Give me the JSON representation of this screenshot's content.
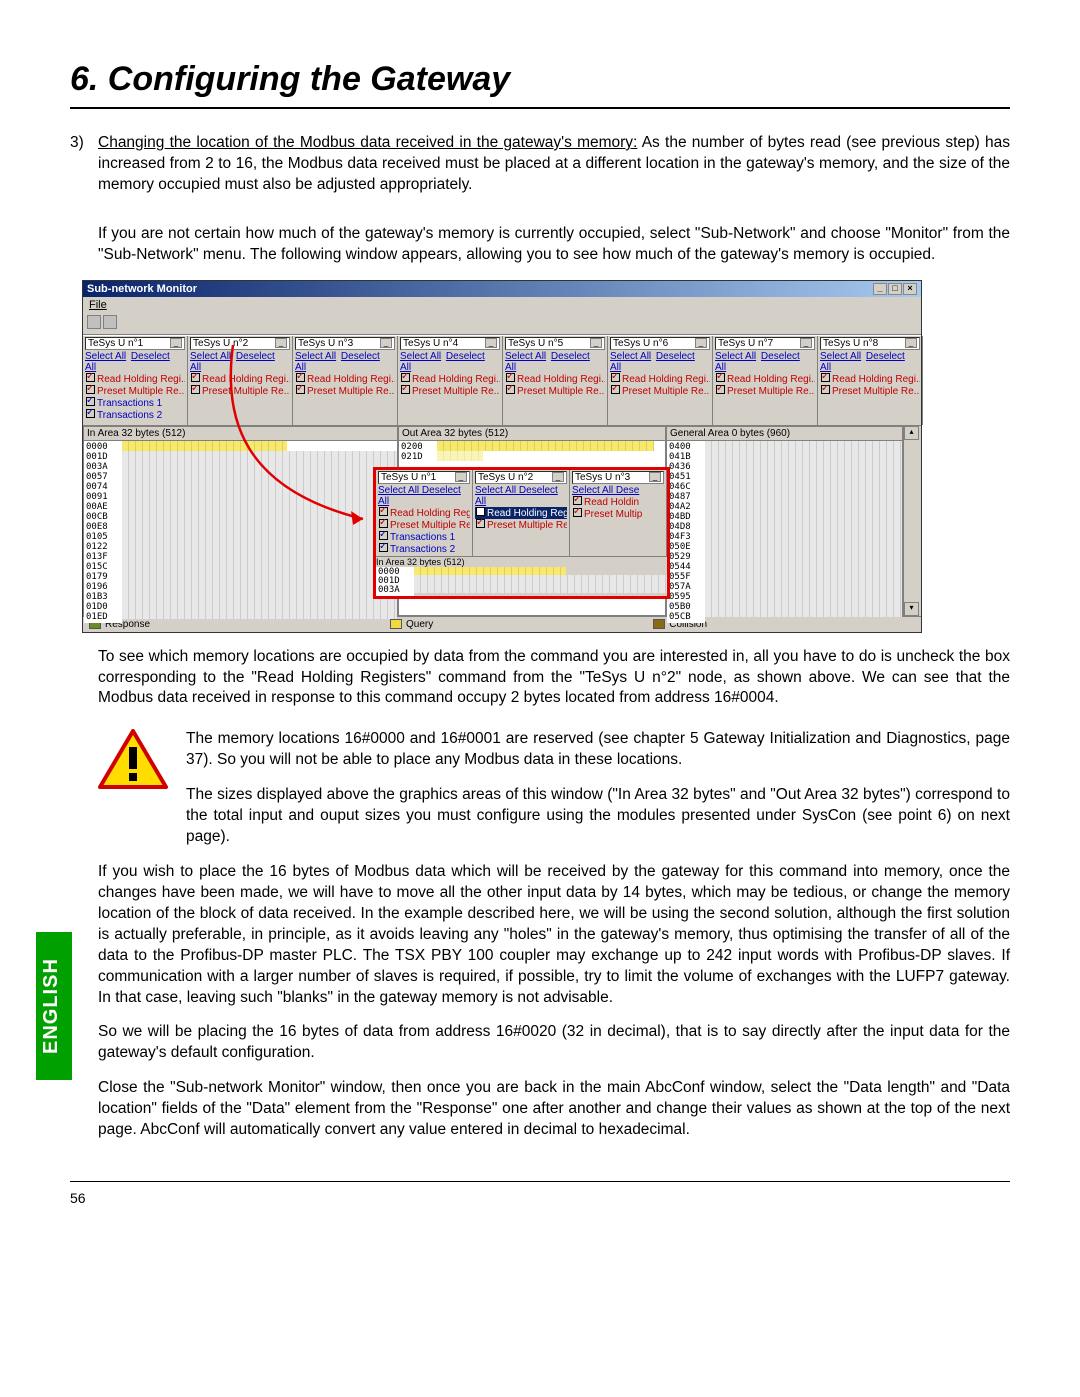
{
  "page": {
    "title": "6. Configuring the Gateway",
    "intro_num": "3)",
    "intro_underline": "Changing the location of the Modbus data received in the gateway's memory:",
    "intro_tail": " As the number of bytes read (see previous step) has increased from 2 to 16, the Modbus data received must be placed at a different location in the gateway's memory, and the size of the memory occupied must also be adjusted appropriately.",
    "p2": "If you are not certain how much of the gateway's memory is currently occupied, select \"Sub-Network\" and choose \"Monitor\" from the \"Sub-Network\" menu. The following window appears, allowing you to see how much of the gateway's memory is occupied.",
    "p3": "To see which memory locations are occupied by data from the command you are interested in, all you have to do is uncheck the box corresponding to the \"Read Holding Registers\" command from the \"TeSys U n°2\" node, as shown above. We can see that the Modbus data received in response to this command occupy 2 bytes located from address 16#0004.",
    "warn1": "The memory locations 16#0000 and 16#0001 are reserved (see chapter 5 Gateway Initialization and Diagnostics, page 37). So you will not be able to place any Modbus data in these locations.",
    "warn2": "The sizes displayed above the graphics areas of this window (\"In Area 32 bytes\" and \"Out Area 32 bytes\") correspond to the total input and ouput sizes you must configure using the modules presented under SysCon (see point 6) on next page).",
    "p4": "If you wish to place the 16 bytes of Modbus data which will be received by the gateway for this command into memory, once the changes have been made, we will have to move all the other input data by 14 bytes, which may be tedious, or change the memory location of the block of data received. In the example described here, we will be using the second solution, although the first solution is actually preferable, in principle, as it avoids leaving any \"holes\" in the gateway's memory, thus optimising the transfer of all of the data to the Profibus-DP master PLC. The TSX PBY 100 coupler may exchange up to 242 input words with Profibus-DP slaves. If communication with a larger number of slaves is required, if possible, try to limit the volume of exchanges with the LUFP7 gateway. In that case, leaving such \"blanks\" in the gateway memory is not advisable.",
    "p5": "So we will be placing the 16 bytes of data from address 16#0020 (32 in decimal), that is to say directly after the input data for the gateway's default configuration.",
    "p6": "Close the \"Sub-network Monitor\" window, then once you are back in the main AbcConf window, select the \"Data length\" and \"Data location\" fields of the \"Data\" element from the \"Response\" one after another and change their values as shown at the top of the next page. AbcConf will automatically convert any value entered in decimal to hexadecimal.",
    "page_number": "56",
    "english_tab": "ENGLISH"
  },
  "screenshot": {
    "title": "Sub-network Monitor",
    "menu_file": "File",
    "devices": [
      "TeSys U n°1",
      "TeSys U n°2",
      "TeSys U n°3",
      "TeSys U n°4",
      "TeSys U n°5",
      "TeSys U n°6",
      "TeSys U n°7",
      "TeSys U n°8"
    ],
    "select_all": "Select All",
    "deselect_all": "Deselect All",
    "read_holding": "Read Holding Regi...",
    "preset_multiple": "Preset Multiple Re...",
    "transactions1": "Transactions 1",
    "transactions2": "Transactions 2",
    "in_area_label": "In Area 32 bytes (512)",
    "out_area_label": "Out Area 32 bytes (512)",
    "general_area_label": "General Area 0 bytes (960)",
    "in_addrs": [
      "0000",
      "001D",
      "003A",
      "0057",
      "0074",
      "0091",
      "00AE",
      "00CB",
      "00E8",
      "0105",
      "0122",
      "013F",
      "015C",
      "0179",
      "0196",
      "01B3",
      "01D0",
      "01ED"
    ],
    "out_addrs": [
      "0200",
      "021D"
    ],
    "gen_addrs": [
      "0400",
      "041B",
      "0436",
      "0451",
      "046C",
      "0487",
      "04A2",
      "04BD",
      "04D8",
      "04F3",
      "050E",
      "0529",
      "0544",
      "055F",
      "057A",
      "0595",
      "05B0",
      "05CB"
    ],
    "inset_devices": [
      "TeSys U n°1",
      "TeSys U n°2",
      "TeSys U n°3"
    ],
    "inset_sel_dese": "Select All  Dese",
    "inset_read_holdin": "Read Holdin",
    "inset_preset_multip": "Preset Multip",
    "inset_in_area": "In Area 32 bytes (512)",
    "inset_addrs": [
      "0000",
      "001D",
      "003A"
    ],
    "legend_response": "Response",
    "legend_query": "Query",
    "legend_collision": "Collision"
  }
}
